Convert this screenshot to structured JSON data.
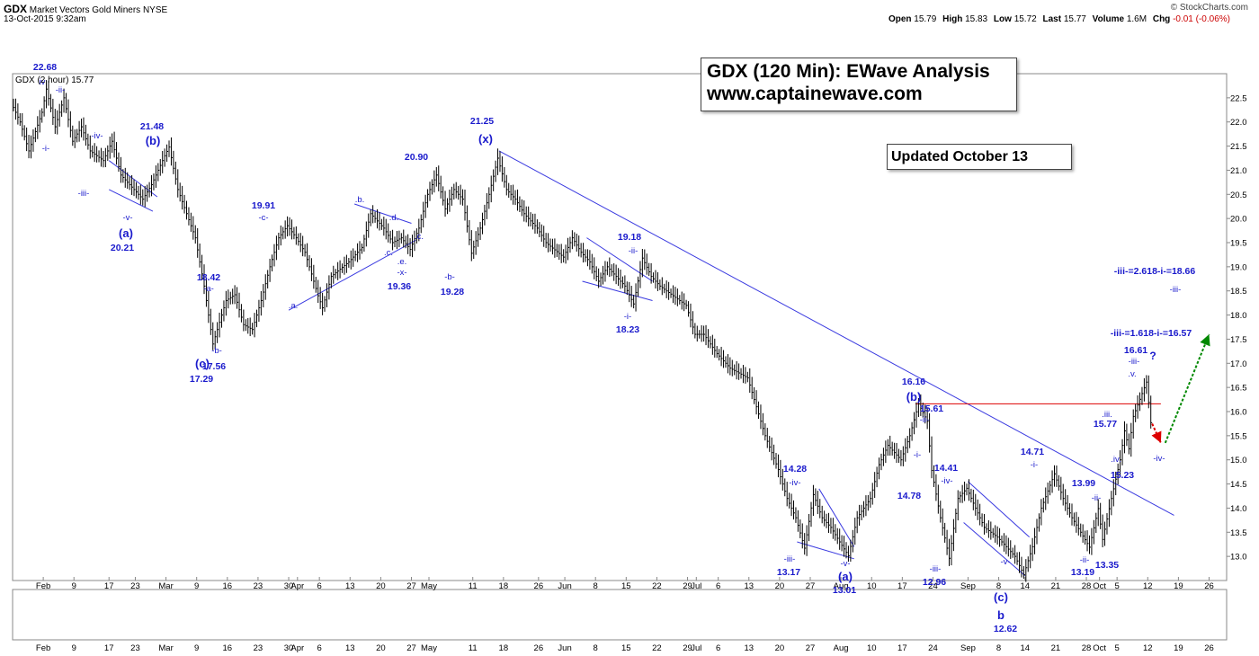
{
  "header": {
    "symbol": "GDX",
    "name": "Market Vectors Gold Miners",
    "exchange": "NYSE",
    "datetime": "13-Oct-2015 9:32am",
    "source": "© StockCharts.com",
    "open_label": "Open",
    "open": "15.79",
    "high_label": "High",
    "high": "15.83",
    "low_label": "Low",
    "low": "15.72",
    "last_label": "Last",
    "last": "15.77",
    "volume_label": "Volume",
    "volume": "1.6M",
    "chg_label": "Chg",
    "chg": "-0.01 (-0.06%)"
  },
  "legend": "GDX (2 hour) 15.77",
  "title_box": {
    "line1": "GDX (120 Min): EWave Analysis",
    "line2": "www.captainewave.com"
  },
  "updated_box": "Updated October 13",
  "colors": {
    "price": "#000000",
    "annotation": "#1a1acc",
    "trendline": "#3a3ae0",
    "resistance": "#dd0000",
    "projection_up": "#008800",
    "projection_down": "#dd0000"
  },
  "chart_data": {
    "type": "line",
    "ylabel": "",
    "ylim": [
      12.5,
      23.0
    ],
    "yticks": [
      13.0,
      13.5,
      14.0,
      14.5,
      15.0,
      15.5,
      16.0,
      16.5,
      17.0,
      17.5,
      18.0,
      18.5,
      19.0,
      19.5,
      20.0,
      20.5,
      21.0,
      21.5,
      22.0,
      22.5
    ],
    "ytick_labels": [
      "13.0",
      "13.5",
      "14.0",
      "14.5",
      "15.0",
      "15.5",
      "16.0",
      "16.5",
      "17.0",
      "17.5",
      "18.0",
      "18.5",
      "19.0",
      "19.5",
      "20.0",
      "20.5",
      "21.0",
      "21.5",
      "22.0",
      "22.5"
    ],
    "xrange": [
      "2015-01-26",
      "2015-10-30"
    ],
    "xticks": [
      {
        "date": "2015-02-02",
        "label": "Feb"
      },
      {
        "date": "2015-02-09",
        "label": "9"
      },
      {
        "date": "2015-02-17",
        "label": "17"
      },
      {
        "date": "2015-02-23",
        "label": "23"
      },
      {
        "date": "2015-03-02",
        "label": "Mar"
      },
      {
        "date": "2015-03-09",
        "label": "9"
      },
      {
        "date": "2015-03-16",
        "label": "16"
      },
      {
        "date": "2015-03-23",
        "label": "23"
      },
      {
        "date": "2015-03-30",
        "label": "30"
      },
      {
        "date": "2015-04-01",
        "label": "Apr"
      },
      {
        "date": "2015-04-06",
        "label": "6"
      },
      {
        "date": "2015-04-13",
        "label": "13"
      },
      {
        "date": "2015-04-20",
        "label": "20"
      },
      {
        "date": "2015-04-27",
        "label": "27"
      },
      {
        "date": "2015-05-01",
        "label": "May"
      },
      {
        "date": "2015-05-11",
        "label": "11"
      },
      {
        "date": "2015-05-18",
        "label": "18"
      },
      {
        "date": "2015-05-26",
        "label": "26"
      },
      {
        "date": "2015-06-01",
        "label": "Jun"
      },
      {
        "date": "2015-06-08",
        "label": "8"
      },
      {
        "date": "2015-06-15",
        "label": "15"
      },
      {
        "date": "2015-06-22",
        "label": "22"
      },
      {
        "date": "2015-06-29",
        "label": "29"
      },
      {
        "date": "2015-07-01",
        "label": "Jul"
      },
      {
        "date": "2015-07-06",
        "label": "6"
      },
      {
        "date": "2015-07-13",
        "label": "13"
      },
      {
        "date": "2015-07-20",
        "label": "20"
      },
      {
        "date": "2015-07-27",
        "label": "27"
      },
      {
        "date": "2015-08-03",
        "label": "Aug"
      },
      {
        "date": "2015-08-10",
        "label": "10"
      },
      {
        "date": "2015-08-17",
        "label": "17"
      },
      {
        "date": "2015-08-24",
        "label": "24"
      },
      {
        "date": "2015-09-01",
        "label": "Sep"
      },
      {
        "date": "2015-09-08",
        "label": "8"
      },
      {
        "date": "2015-09-14",
        "label": "14"
      },
      {
        "date": "2015-09-21",
        "label": "21"
      },
      {
        "date": "2015-09-28",
        "label": "28"
      },
      {
        "date": "2015-10-01",
        "label": "Oct"
      },
      {
        "date": "2015-10-05",
        "label": "5"
      },
      {
        "date": "2015-10-12",
        "label": "12"
      },
      {
        "date": "2015-10-19",
        "label": "19"
      },
      {
        "date": "2015-10-26",
        "label": "26"
      }
    ],
    "series": [
      {
        "name": "GDX",
        "points": [
          [
            "2015-01-26",
            22.4
          ],
          [
            "2015-01-28",
            22.0
          ],
          [
            "2015-01-30",
            21.4
          ],
          [
            "2015-02-02",
            22.2
          ],
          [
            "2015-02-03",
            22.68
          ],
          [
            "2015-02-05",
            21.9
          ],
          [
            "2015-02-07",
            22.5
          ],
          [
            "2015-02-09",
            21.6
          ],
          [
            "2015-02-11",
            21.9
          ],
          [
            "2015-02-13",
            21.4
          ],
          [
            "2015-02-16",
            21.2
          ],
          [
            "2015-02-18",
            21.6
          ],
          [
            "2015-02-20",
            20.9
          ],
          [
            "2015-02-23",
            20.6
          ],
          [
            "2015-02-25",
            20.4
          ],
          [
            "2015-02-27",
            20.7
          ],
          [
            "2015-03-02",
            21.3
          ],
          [
            "2015-03-03",
            21.48
          ],
          [
            "2015-03-05",
            20.6
          ],
          [
            "2015-03-07",
            20.1
          ],
          [
            "2015-03-09",
            19.6
          ],
          [
            "2015-03-11",
            18.6
          ],
          [
            "2015-03-13",
            17.4
          ],
          [
            "2015-03-16",
            18.3
          ],
          [
            "2015-03-18",
            18.42
          ],
          [
            "2015-03-20",
            17.8
          ],
          [
            "2015-03-22",
            17.7
          ],
          [
            "2015-03-24",
            18.3
          ],
          [
            "2015-03-26",
            19.0
          ],
          [
            "2015-03-28",
            19.6
          ],
          [
            "2015-03-30",
            19.85
          ],
          [
            "2015-04-01",
            19.6
          ],
          [
            "2015-04-03",
            19.3
          ],
          [
            "2015-04-06",
            18.4
          ],
          [
            "2015-04-07",
            18.15
          ],
          [
            "2015-04-09",
            18.8
          ],
          [
            "2015-04-13",
            19.1
          ],
          [
            "2015-04-16",
            19.4
          ],
          [
            "2015-04-18",
            20.1
          ],
          [
            "2015-04-21",
            19.8
          ],
          [
            "2015-04-23",
            19.5
          ],
          [
            "2015-04-25",
            19.6
          ],
          [
            "2015-04-27",
            19.36
          ],
          [
            "2015-04-29",
            19.8
          ],
          [
            "2015-05-01",
            20.5
          ],
          [
            "2015-05-03",
            20.9
          ],
          [
            "2015-05-05",
            20.2
          ],
          [
            "2015-05-07",
            20.6
          ],
          [
            "2015-05-09",
            20.4
          ],
          [
            "2015-05-11",
            19.28
          ],
          [
            "2015-05-13",
            19.8
          ],
          [
            "2015-05-15",
            20.5
          ],
          [
            "2015-05-17",
            21.25
          ],
          [
            "2015-05-19",
            20.6
          ],
          [
            "2015-05-21",
            20.4
          ],
          [
            "2015-05-23",
            20.1
          ],
          [
            "2015-05-26",
            19.8
          ],
          [
            "2015-05-28",
            19.5
          ],
          [
            "2015-06-01",
            19.2
          ],
          [
            "2015-06-03",
            19.6
          ],
          [
            "2015-06-05",
            19.3
          ],
          [
            "2015-06-07",
            19.1
          ],
          [
            "2015-06-09",
            18.7
          ],
          [
            "2015-06-11",
            19.0
          ],
          [
            "2015-06-13",
            18.8
          ],
          [
            "2015-06-15",
            18.6
          ],
          [
            "2015-06-17",
            18.23
          ],
          [
            "2015-06-19",
            19.18
          ],
          [
            "2015-06-21",
            18.8
          ],
          [
            "2015-06-23",
            18.6
          ],
          [
            "2015-06-26",
            18.4
          ],
          [
            "2015-06-29",
            18.2
          ],
          [
            "2015-07-01",
            17.6
          ],
          [
            "2015-07-03",
            17.6
          ],
          [
            "2015-07-06",
            17.2
          ],
          [
            "2015-07-09",
            16.9
          ],
          [
            "2015-07-13",
            16.7
          ],
          [
            "2015-07-15",
            16.1
          ],
          [
            "2015-07-17",
            15.5
          ],
          [
            "2015-07-20",
            14.8
          ],
          [
            "2015-07-22",
            14.2
          ],
          [
            "2015-07-24",
            13.8
          ],
          [
            "2015-07-26",
            13.17
          ],
          [
            "2015-07-28",
            14.28
          ],
          [
            "2015-07-30",
            13.8
          ],
          [
            "2015-08-01",
            13.6
          ],
          [
            "2015-08-03",
            13.3
          ],
          [
            "2015-08-05",
            13.01
          ],
          [
            "2015-08-07",
            13.8
          ],
          [
            "2015-08-10",
            14.2
          ],
          [
            "2015-08-12",
            14.9
          ],
          [
            "2015-08-14",
            15.3
          ],
          [
            "2015-08-17",
            15.0
          ],
          [
            "2015-08-19",
            15.5
          ],
          [
            "2015-08-21",
            16.16
          ],
          [
            "2015-08-23",
            15.8
          ],
          [
            "2015-08-24",
            14.78
          ],
          [
            "2015-08-26",
            13.8
          ],
          [
            "2015-08-28",
            12.96
          ],
          [
            "2015-08-30",
            14.2
          ],
          [
            "2015-09-01",
            14.41
          ],
          [
            "2015-09-03",
            14.0
          ],
          [
            "2015-09-05",
            13.6
          ],
          [
            "2015-09-08",
            13.4
          ],
          [
            "2015-09-10",
            13.2
          ],
          [
            "2015-09-12",
            13.0
          ],
          [
            "2015-09-14",
            12.62
          ],
          [
            "2015-09-16",
            13.2
          ],
          [
            "2015-09-18",
            14.0
          ],
          [
            "2015-09-21",
            14.71
          ],
          [
            "2015-09-23",
            14.2
          ],
          [
            "2015-09-25",
            13.8
          ],
          [
            "2015-09-27",
            13.5
          ],
          [
            "2015-09-29",
            13.19
          ],
          [
            "2015-10-01",
            13.99
          ],
          [
            "2015-10-02",
            13.35
          ],
          [
            "2015-10-04",
            14.2
          ],
          [
            "2015-10-06",
            15.0
          ],
          [
            "2015-10-07",
            15.6
          ],
          [
            "2015-10-08",
            15.23
          ],
          [
            "2015-10-09",
            15.9
          ],
          [
            "2015-10-12",
            16.61
          ],
          [
            "2015-10-13",
            15.77
          ]
        ]
      }
    ],
    "price_labels": [
      {
        "text": "22.68",
        "date": "2015-02-03",
        "y": 22.68
      },
      {
        "text": "21.48",
        "date": "2015-03-03",
        "y": 21.48
      },
      {
        "text": "20.21",
        "date": "2015-02-27",
        "y": 20.21
      },
      {
        "text": "18.42",
        "date": "2015-03-18",
        "y": 18.42
      },
      {
        "text": "17.56",
        "date": "2015-03-22",
        "y": 17.56
      },
      {
        "text": "17.29",
        "date": "2015-03-13",
        "y": 17.29
      },
      {
        "text": "19.91",
        "date": "2015-03-30",
        "y": 19.91
      },
      {
        "text": "20.90",
        "date": "2015-05-03",
        "y": 20.9
      },
      {
        "text": "19.36",
        "date": "2015-04-27",
        "y": 19.36
      },
      {
        "text": "19.28",
        "date": "2015-05-11",
        "y": 19.28
      },
      {
        "text": "21.25",
        "date": "2015-05-17",
        "y": 21.25
      },
      {
        "text": "19.18",
        "date": "2015-06-19",
        "y": 19.18
      },
      {
        "text": "18.23",
        "date": "2015-06-17",
        "y": 18.23
      },
      {
        "text": "14.28",
        "date": "2015-07-28",
        "y": 14.28
      },
      {
        "text": "13.17",
        "date": "2015-07-26",
        "y": 13.17
      },
      {
        "text": "13.01",
        "date": "2015-08-05",
        "y": 13.01
      },
      {
        "text": "16.16",
        "date": "2015-08-21",
        "y": 16.16
      },
      {
        "text": "15.61",
        "date": "2015-08-24",
        "y": 15.61
      },
      {
        "text": "14.78",
        "date": "2015-08-24",
        "y": 14.78
      },
      {
        "text": "14.41",
        "date": "2015-09-01",
        "y": 14.41
      },
      {
        "text": "12.96",
        "date": "2015-08-28",
        "y": 12.96
      },
      {
        "text": "12.62",
        "date": "2015-09-14",
        "y": 12.62
      },
      {
        "text": "14.71",
        "date": "2015-09-21",
        "y": 14.71
      },
      {
        "text": "13.99",
        "date": "2015-10-01",
        "y": 13.99
      },
      {
        "text": "13.19",
        "date": "2015-09-29",
        "y": 13.19
      },
      {
        "text": "13.35",
        "date": "2015-10-02",
        "y": 13.35
      },
      {
        "text": "15.77",
        "date": "2015-10-09",
        "y": 15.77
      },
      {
        "text": "15.23",
        "date": "2015-10-08",
        "y": 15.23
      },
      {
        "text": "16.61",
        "date": "2015-10-12",
        "y": 16.61
      }
    ],
    "wave_labels": [
      "iv",
      "-ii-",
      "-i-",
      "-iii-",
      "-iv-",
      "-v-",
      "(a)",
      "(b)",
      "-a-",
      "-b-",
      "(c)",
      "-c-",
      ".a.",
      ".b.",
      ".c.",
      ".d.",
      ".e.",
      "-x-",
      ".c.",
      "-b-",
      "(x)",
      "-ii-",
      "-i-",
      "-iv-",
      "-iii-",
      "-v-",
      "(a)",
      "(b)",
      "-i-",
      "-ii-",
      "-iv-",
      "-iii-",
      "-v-",
      "(c)",
      "b",
      "-i-",
      "-ii-",
      "-ii-",
      ".iii.",
      ".iv.",
      ".v.",
      "-iii-",
      "-iv-",
      "?",
      "-iii-"
    ],
    "targets": [
      {
        "text": "-iii-=1.618-i-=16.57",
        "y": 16.57
      },
      {
        "text": "-iii-=2.618-i-=18.66",
        "y": 18.66
      }
    ],
    "resistance_level": 16.16,
    "grid": false,
    "legend_position": "top-left"
  }
}
